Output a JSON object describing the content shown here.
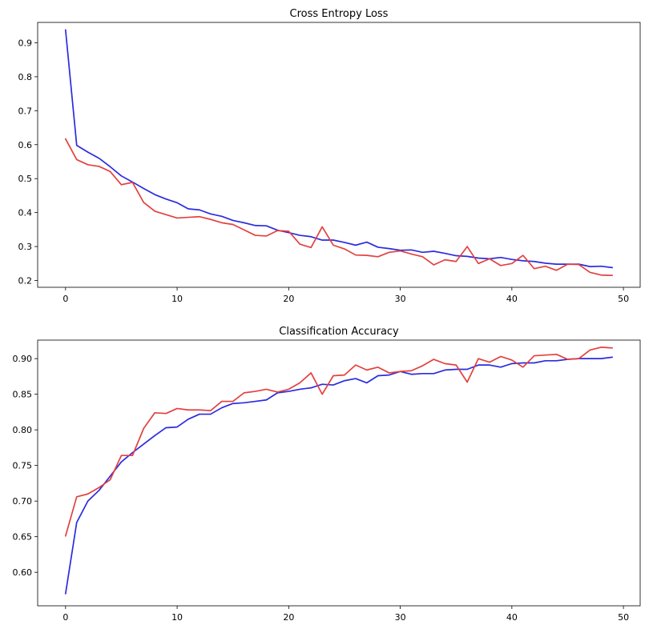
{
  "colors": {
    "blue": "#2b2bdf",
    "red": "#e2413f"
  },
  "chart_data": [
    {
      "type": "line",
      "title": "Cross Entropy Loss",
      "xlabel": "",
      "ylabel": "",
      "xlim": [
        -2.5,
        51.5
      ],
      "ylim": [
        0.18,
        0.96
      ],
      "xticks": [
        0,
        10,
        20,
        30,
        40,
        50
      ],
      "yticks": [
        0.2,
        0.3,
        0.4,
        0.5,
        0.6,
        0.7,
        0.8,
        0.9
      ],
      "ytick_decimals": 1,
      "grid": false,
      "x": [
        0,
        1,
        2,
        3,
        4,
        5,
        6,
        7,
        8,
        9,
        10,
        11,
        12,
        13,
        14,
        15,
        16,
        17,
        18,
        19,
        20,
        21,
        22,
        23,
        24,
        25,
        26,
        27,
        28,
        29,
        30,
        31,
        32,
        33,
        34,
        35,
        36,
        37,
        38,
        39,
        40,
        41,
        42,
        43,
        44,
        45,
        46,
        47,
        48,
        49
      ],
      "series": [
        {
          "color": "#2b2bdf",
          "values": [
            0.938,
            0.598,
            0.578,
            0.56,
            0.535,
            0.508,
            0.49,
            0.471,
            0.453,
            0.44,
            0.429,
            0.411,
            0.408,
            0.396,
            0.389,
            0.377,
            0.37,
            0.362,
            0.361,
            0.348,
            0.341,
            0.333,
            0.329,
            0.319,
            0.319,
            0.312,
            0.304,
            0.313,
            0.298,
            0.294,
            0.289,
            0.29,
            0.283,
            0.286,
            0.28,
            0.273,
            0.271,
            0.266,
            0.264,
            0.268,
            0.262,
            0.258,
            0.256,
            0.251,
            0.248,
            0.248,
            0.248,
            0.241,
            0.242,
            0.238
          ]
        },
        {
          "color": "#e2413f",
          "values": [
            0.617,
            0.556,
            0.541,
            0.536,
            0.521,
            0.482,
            0.489,
            0.43,
            0.404,
            0.394,
            0.384,
            0.386,
            0.388,
            0.38,
            0.37,
            0.365,
            0.349,
            0.333,
            0.331,
            0.347,
            0.345,
            0.307,
            0.297,
            0.358,
            0.304,
            0.293,
            0.275,
            0.274,
            0.27,
            0.283,
            0.287,
            0.278,
            0.27,
            0.246,
            0.261,
            0.256,
            0.3,
            0.25,
            0.264,
            0.244,
            0.25,
            0.274,
            0.235,
            0.242,
            0.23,
            0.248,
            0.247,
            0.224,
            0.216,
            0.215
          ]
        }
      ]
    },
    {
      "type": "line",
      "title": "Classification Accuracy",
      "xlabel": "",
      "ylabel": "",
      "xlim": [
        -2.5,
        51.5
      ],
      "ylim": [
        0.553,
        0.926
      ],
      "xticks": [
        0,
        10,
        20,
        30,
        40,
        50
      ],
      "yticks": [
        0.6,
        0.65,
        0.7,
        0.75,
        0.8,
        0.85,
        0.9
      ],
      "ytick_decimals": 2,
      "grid": false,
      "x": [
        0,
        1,
        2,
        3,
        4,
        5,
        6,
        7,
        8,
        9,
        10,
        11,
        12,
        13,
        14,
        15,
        16,
        17,
        18,
        19,
        20,
        21,
        22,
        23,
        24,
        25,
        26,
        27,
        28,
        29,
        30,
        31,
        32,
        33,
        34,
        35,
        36,
        37,
        38,
        39,
        40,
        41,
        42,
        43,
        44,
        45,
        46,
        47,
        48,
        49
      ],
      "series": [
        {
          "color": "#2b2bdf",
          "values": [
            0.57,
            0.67,
            0.7,
            0.715,
            0.735,
            0.755,
            0.768,
            0.78,
            0.792,
            0.803,
            0.804,
            0.815,
            0.822,
            0.822,
            0.831,
            0.837,
            0.838,
            0.84,
            0.842,
            0.852,
            0.854,
            0.857,
            0.859,
            0.864,
            0.863,
            0.869,
            0.872,
            0.866,
            0.876,
            0.877,
            0.882,
            0.878,
            0.879,
            0.879,
            0.884,
            0.885,
            0.885,
            0.891,
            0.891,
            0.888,
            0.893,
            0.894,
            0.894,
            0.897,
            0.897,
            0.899,
            0.9,
            0.9,
            0.9,
            0.902
          ]
        },
        {
          "color": "#e2413f",
          "values": [
            0.651,
            0.706,
            0.71,
            0.719,
            0.73,
            0.764,
            0.764,
            0.802,
            0.824,
            0.823,
            0.83,
            0.828,
            0.828,
            0.827,
            0.84,
            0.84,
            0.852,
            0.854,
            0.857,
            0.853,
            0.857,
            0.866,
            0.88,
            0.85,
            0.876,
            0.877,
            0.891,
            0.884,
            0.888,
            0.88,
            0.882,
            0.883,
            0.89,
            0.899,
            0.893,
            0.891,
            0.867,
            0.9,
            0.895,
            0.903,
            0.898,
            0.888,
            0.904,
            0.905,
            0.906,
            0.899,
            0.9,
            0.912,
            0.916,
            0.915
          ]
        }
      ]
    }
  ]
}
